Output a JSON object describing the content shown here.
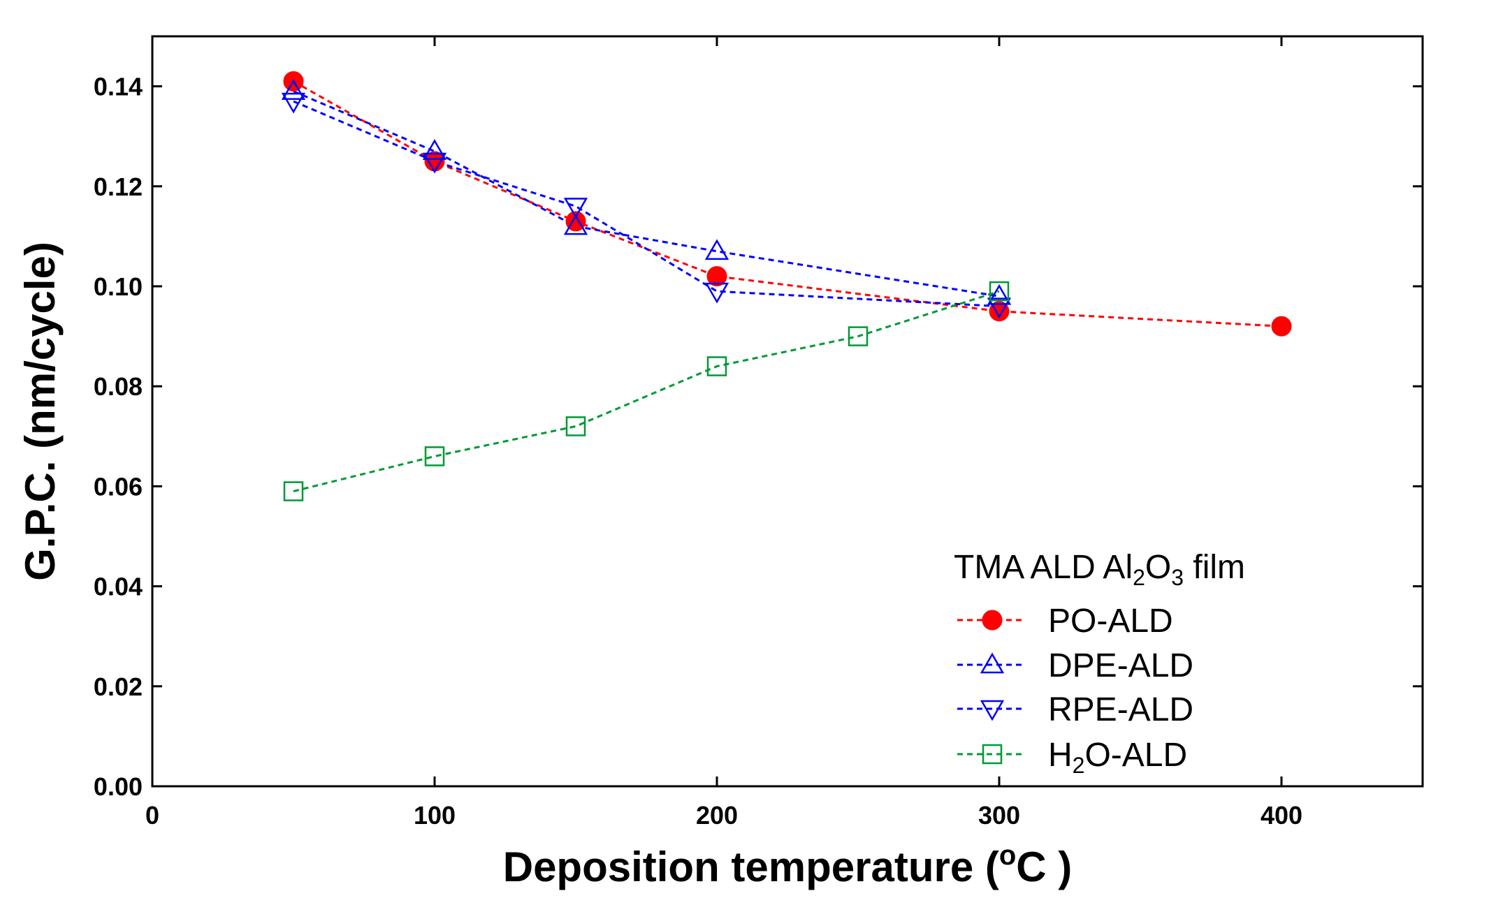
{
  "chart_data": {
    "type": "line",
    "xlabel_main": "Deposition temperature (",
    "xlabel_degree": "o",
    "xlabel_unit": "C )",
    "ylabel": "G.P.C. (nm/cycle)",
    "xlim": [
      0,
      450
    ],
    "ylim": [
      0,
      0.15
    ],
    "x_ticks": [
      {
        "value": 0,
        "label": "0"
      },
      {
        "value": 100,
        "label": "100"
      },
      {
        "value": 200,
        "label": "200"
      },
      {
        "value": 300,
        "label": "300"
      },
      {
        "value": 400,
        "label": "400"
      }
    ],
    "y_ticks": [
      {
        "value": 0,
        "label": "0.00"
      },
      {
        "value": 0.02,
        "label": "0.02"
      },
      {
        "value": 0.04,
        "label": "0.04"
      },
      {
        "value": 0.06,
        "label": "0.06"
      },
      {
        "value": 0.08,
        "label": "0.08"
      },
      {
        "value": 0.1,
        "label": "0.10"
      },
      {
        "value": 0.12,
        "label": "0.12"
      },
      {
        "value": 0.14,
        "label": "0.14"
      }
    ],
    "grid": false,
    "legend": {
      "placement": "bottom-right",
      "title_parts": [
        "TMA ALD Al",
        "2",
        "O",
        "3",
        " film"
      ],
      "entries": [
        {
          "series": 0,
          "parts": [
            "PO-ALD"
          ]
        },
        {
          "series": 1,
          "parts": [
            "DPE-ALD"
          ]
        },
        {
          "series": 2,
          "parts": [
            "RPE-ALD"
          ]
        },
        {
          "series": 3,
          "parts": [
            "H",
            "2",
            "O-ALD"
          ]
        }
      ]
    },
    "series": [
      {
        "name": "PO-ALD",
        "color": "#ff0000",
        "marker": "circle-filled",
        "x": [
          50,
          100,
          150,
          200,
          300,
          400
        ],
        "y": [
          0.141,
          0.125,
          0.113,
          0.102,
          0.095,
          0.092
        ]
      },
      {
        "name": "DPE-ALD",
        "color": "#0000ff",
        "marker": "triangle-up-open",
        "x": [
          50,
          100,
          150,
          200,
          300
        ],
        "y": [
          0.139,
          0.127,
          0.112,
          0.107,
          0.098
        ]
      },
      {
        "name": "RPE-ALD",
        "color": "#0000ff",
        "marker": "triangle-down-open",
        "x": [
          50,
          100,
          150,
          200,
          300
        ],
        "y": [
          0.137,
          0.125,
          0.116,
          0.099,
          0.096
        ]
      },
      {
        "name": "H2O-ALD",
        "color": "#009933",
        "marker": "square-open",
        "x": [
          50,
          100,
          150,
          200,
          250,
          300
        ],
        "y": [
          0.059,
          0.066,
          0.072,
          0.084,
          0.09,
          0.099
        ]
      }
    ]
  }
}
